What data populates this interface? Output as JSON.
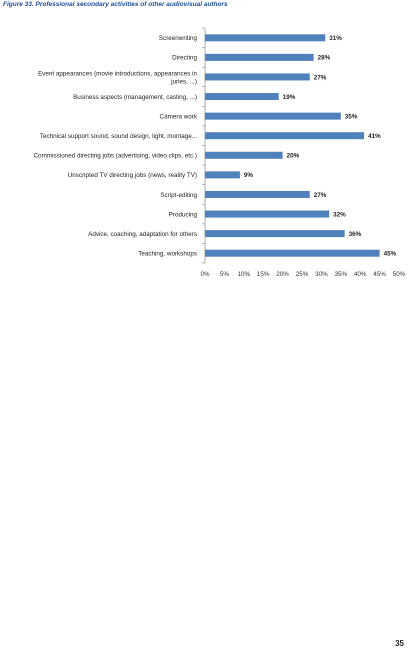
{
  "figure_title": "Figure 33. Professional secondary activities of other audiovisual authors",
  "page_number": "35",
  "chart_data": {
    "type": "bar",
    "orientation": "horizontal",
    "categories": [
      [
        "Screenwriting"
      ],
      [
        "Directing"
      ],
      [
        "Event appearances (movie introductions, appearances in",
        "juries, ...)"
      ],
      [
        "Business aspects (management, casting, ...)"
      ],
      [
        "Camera work"
      ],
      [
        "Technical support sound, sound design, light, montage..."
      ],
      [
        "Commissioned directing jobs (advertising, video clips, etc.)"
      ],
      [
        "Unscripted TV directing jobs (news, reality TV)"
      ],
      [
        "Script-editing"
      ],
      [
        "Producing"
      ],
      [
        "Advice, coaching, adaptation for others"
      ],
      [
        "Teaching, workshops"
      ]
    ],
    "values": [
      31,
      28,
      27,
      19,
      35,
      41,
      20,
      9,
      27,
      32,
      36,
      45
    ],
    "value_labels": [
      "31%",
      "28%",
      "27%",
      "19%",
      "35%",
      "41%",
      "20%",
      "9%",
      "27%",
      "32%",
      "36%",
      "45%"
    ],
    "xlim": [
      0,
      50
    ],
    "xticks": [
      0,
      5,
      10,
      15,
      20,
      25,
      30,
      35,
      40,
      45,
      50
    ],
    "xtick_labels": [
      "0%",
      "5%",
      "10%",
      "15%",
      "20%",
      "25%",
      "30%",
      "35%",
      "40%",
      "45%",
      "50%"
    ],
    "bar_color": "#4f81bd",
    "grid": false,
    "legend": "none"
  }
}
